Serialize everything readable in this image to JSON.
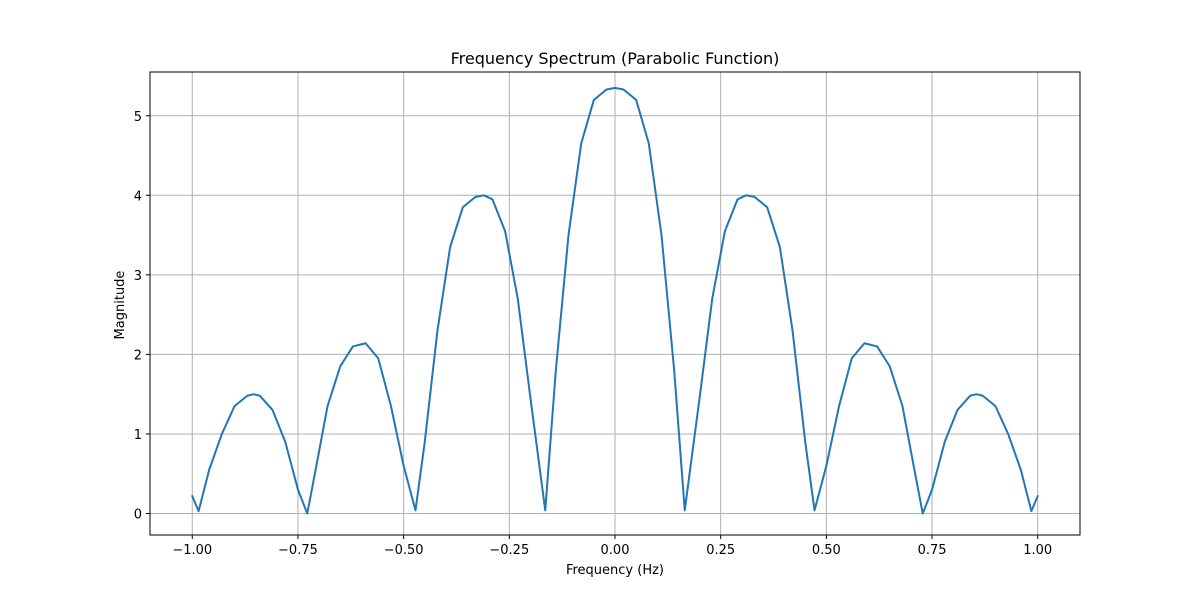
{
  "chart_data": {
    "type": "line",
    "title": "Frequency Spectrum (Parabolic Function)",
    "xlabel": "Frequency (Hz)",
    "ylabel": "Magnitude",
    "xlim": [
      -1.1,
      1.1
    ],
    "ylim": [
      -0.27,
      5.55
    ],
    "xticks": [
      -1.0,
      -0.75,
      -0.5,
      -0.25,
      0.0,
      0.25,
      0.5,
      0.75,
      1.0
    ],
    "xtick_labels": [
      "−1.00",
      "−0.75",
      "−0.50",
      "−0.25",
      "0.00",
      "0.25",
      "0.50",
      "0.75",
      "1.00"
    ],
    "yticks": [
      0,
      1,
      2,
      3,
      4,
      5
    ],
    "ytick_labels": [
      "0",
      "1",
      "2",
      "3",
      "4",
      "5"
    ],
    "grid": true,
    "colors": {
      "line": "#1f77b4",
      "grid": "#b0b0b0",
      "frame": "#000000"
    },
    "series": [
      {
        "x": [
          -1.0,
          -0.985,
          -0.96,
          -0.93,
          -0.9,
          -0.87,
          -0.855,
          -0.84,
          -0.81,
          -0.78,
          -0.75,
          -0.728,
          -0.71,
          -0.68,
          -0.65,
          -0.62,
          -0.59,
          -0.56,
          -0.53,
          -0.5,
          -0.472,
          -0.45,
          -0.42,
          -0.39,
          -0.36,
          -0.33,
          -0.31,
          -0.29,
          -0.26,
          -0.23,
          -0.2,
          -0.165,
          -0.14,
          -0.11,
          -0.08,
          -0.05,
          -0.02,
          0.0,
          0.02,
          0.05,
          0.08,
          0.11,
          0.14,
          0.165,
          0.2,
          0.23,
          0.26,
          0.29,
          0.31,
          0.33,
          0.36,
          0.39,
          0.42,
          0.45,
          0.472,
          0.5,
          0.53,
          0.56,
          0.59,
          0.62,
          0.65,
          0.68,
          0.71,
          0.728,
          0.75,
          0.78,
          0.81,
          0.84,
          0.855,
          0.87,
          0.9,
          0.93,
          0.96,
          0.985,
          1.0
        ],
        "y": [
          0.22,
          0.03,
          0.55,
          1.0,
          1.35,
          1.48,
          1.5,
          1.48,
          1.3,
          0.9,
          0.3,
          0.0,
          0.5,
          1.35,
          1.85,
          2.1,
          2.14,
          1.95,
          1.35,
          0.6,
          0.04,
          0.9,
          2.3,
          3.35,
          3.85,
          3.98,
          4.0,
          3.95,
          3.55,
          2.7,
          1.45,
          0.04,
          1.8,
          3.5,
          4.65,
          5.2,
          5.33,
          5.35,
          5.33,
          5.2,
          4.65,
          3.5,
          1.8,
          0.04,
          1.45,
          2.7,
          3.55,
          3.95,
          4.0,
          3.98,
          3.85,
          3.35,
          2.3,
          0.9,
          0.04,
          0.6,
          1.35,
          1.95,
          2.14,
          2.1,
          1.85,
          1.35,
          0.5,
          0.0,
          0.3,
          0.9,
          1.3,
          1.48,
          1.5,
          1.48,
          1.35,
          1.0,
          0.55,
          0.03,
          0.22
        ]
      }
    ]
  }
}
